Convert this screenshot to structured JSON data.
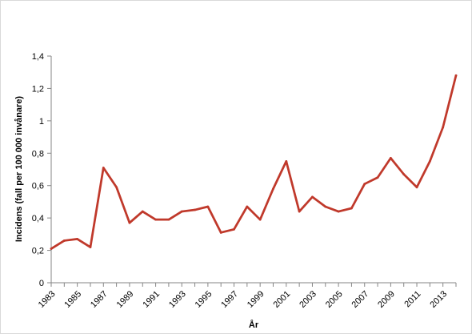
{
  "chart_data": {
    "type": "line",
    "title": "",
    "xlabel": "År",
    "ylabel": "Incidens (fall per 100 000 invånare)",
    "x": [
      1983,
      1984,
      1985,
      1986,
      1987,
      1988,
      1989,
      1990,
      1991,
      1992,
      1993,
      1994,
      1995,
      1996,
      1997,
      1998,
      1999,
      2000,
      2001,
      2002,
      2003,
      2004,
      2005,
      2006,
      2007,
      2008,
      2009,
      2010,
      2011,
      2012,
      2013,
      2014
    ],
    "series": [
      {
        "values": [
          0.21,
          0.26,
          0.27,
          0.22,
          0.71,
          0.59,
          0.37,
          0.44,
          0.39,
          0.39,
          0.44,
          0.45,
          0.47,
          0.31,
          0.33,
          0.47,
          0.39,
          0.58,
          0.75,
          0.44,
          0.53,
          0.47,
          0.44,
          0.46,
          0.61,
          0.65,
          0.77,
          0.67,
          0.59,
          0.75,
          0.96,
          1.28
        ],
        "color": "#c0392b"
      }
    ],
    "x_tick_labels": [
      "1983",
      "1985",
      "1987",
      "1989",
      "1991",
      "1993",
      "1995",
      "1997",
      "1999",
      "2001",
      "2003",
      "2005",
      "2007",
      "2009",
      "2011",
      "2013"
    ],
    "y_tick_labels": [
      "0",
      "0,2",
      "0,4",
      "0,6",
      "0,8",
      "1",
      "1,2",
      "1,4"
    ],
    "y_tick_values": [
      0,
      0.2,
      0.4,
      0.6,
      0.8,
      1.0,
      1.2,
      1.4
    ],
    "xlim": [
      1983,
      2014
    ],
    "ylim": [
      0,
      1.4
    ],
    "grid": false,
    "legend": "none"
  }
}
